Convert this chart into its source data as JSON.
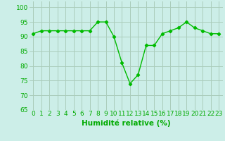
{
  "x": [
    0,
    1,
    2,
    3,
    4,
    5,
    6,
    7,
    8,
    9,
    10,
    11,
    12,
    13,
    14,
    15,
    16,
    17,
    18,
    19,
    20,
    21,
    22,
    23
  ],
  "y": [
    91,
    92,
    92,
    92,
    92,
    92,
    92,
    92,
    95,
    95,
    90,
    81,
    74,
    77,
    87,
    87,
    91,
    92,
    93,
    95,
    93,
    92,
    91,
    91
  ],
  "line_color": "#00bb00",
  "marker": "D",
  "marker_size": 2.2,
  "bg_color": "#cceee8",
  "grid_color": "#aaccbb",
  "xlabel": "Humidité relative (%)",
  "xlabel_color": "#00aa00",
  "xlabel_fontsize": 7.5,
  "tick_color": "#00aa00",
  "tick_fontsize": 6.5,
  "ylim": [
    65,
    102
  ],
  "yticks": [
    65,
    70,
    75,
    80,
    85,
    90,
    95,
    100
  ],
  "xlim": [
    -0.5,
    23.5
  ],
  "xticks": [
    0,
    1,
    2,
    3,
    4,
    5,
    6,
    7,
    8,
    9,
    10,
    11,
    12,
    13,
    14,
    15,
    16,
    17,
    18,
    19,
    20,
    21,
    22,
    23
  ]
}
